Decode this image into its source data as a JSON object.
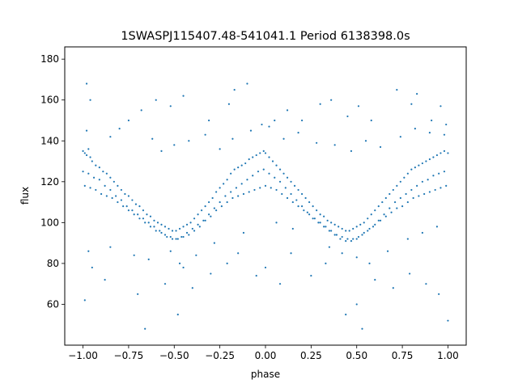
{
  "chart_data": {
    "type": "scatter",
    "title": "1SWASPJ115407.48-541041.1 Period 6138398.0s",
    "xlabel": "phase",
    "ylabel": "flux",
    "xlim": [
      -1.1,
      1.1
    ],
    "ylim": [
      40,
      186
    ],
    "xticks": [
      -1.0,
      -0.75,
      -0.5,
      -0.25,
      0.0,
      0.25,
      0.5,
      0.75,
      1.0
    ],
    "xtick_labels": [
      "−1.00",
      "−0.75",
      "−0.50",
      "−0.25",
      "0.00",
      "0.25",
      "0.50",
      "0.75",
      "1.00"
    ],
    "yticks": [
      60,
      80,
      100,
      120,
      140,
      160,
      180
    ],
    "ytick_labels": [
      "60",
      "80",
      "100",
      "120",
      "140",
      "160",
      "180"
    ],
    "grid": false,
    "point_color": "#1f77b4",
    "series": [
      {
        "x": [
          -1.0,
          -0.99,
          -0.98,
          -0.97,
          -0.96,
          -0.95,
          -0.93,
          -0.91,
          -0.89,
          -0.87,
          -0.85,
          -0.83,
          -0.81,
          -0.79,
          -0.77,
          -0.75,
          -0.73,
          -0.71,
          -0.69,
          -0.67,
          -0.65,
          -0.63,
          -0.61,
          -0.59,
          -0.57,
          -0.55,
          -0.53,
          -0.51,
          -0.49,
          -0.47,
          -0.45,
          -0.43,
          -0.41,
          -0.39,
          -0.37,
          -0.35,
          -0.33,
          -0.31,
          -0.29,
          -0.27,
          -0.25,
          -0.23,
          -0.21,
          -0.19,
          -0.17,
          -0.15,
          -0.13,
          -0.11,
          -0.09,
          -0.07,
          -0.05,
          -0.03,
          -0.01,
          0.0,
          0.02,
          0.04,
          0.06,
          0.08,
          0.1,
          0.12,
          0.14,
          0.16,
          0.18,
          0.2,
          0.22,
          0.24,
          0.26,
          0.28,
          0.3,
          0.32,
          0.34,
          0.36,
          0.38,
          0.4,
          0.42,
          0.44,
          0.46,
          0.48,
          0.5,
          0.52,
          0.54,
          0.56,
          0.58,
          0.6,
          0.62,
          0.64,
          0.66,
          0.68,
          0.7,
          0.72,
          0.74,
          0.76,
          0.78,
          0.8,
          0.82,
          0.84,
          0.86,
          0.88,
          0.9,
          0.92,
          0.94,
          0.96,
          0.98,
          1.0
        ],
        "y": [
          135,
          134,
          133,
          136,
          132,
          130,
          128,
          127,
          125,
          124,
          122,
          120,
          118,
          116,
          114,
          113,
          111,
          109,
          108,
          106,
          104,
          103,
          101,
          100,
          99,
          98,
          97,
          96,
          96,
          97,
          98,
          99,
          100,
          102,
          104,
          106,
          108,
          110,
          112,
          115,
          117,
          119,
          121,
          124,
          126,
          127,
          128,
          129,
          131,
          132,
          133,
          134,
          135,
          134,
          132,
          130,
          128,
          126,
          124,
          122,
          120,
          118,
          116,
          114,
          112,
          110,
          108,
          106,
          104,
          103,
          101,
          100,
          99,
          98,
          97,
          96,
          96,
          97,
          98,
          99,
          100,
          102,
          104,
          106,
          108,
          110,
          112,
          114,
          116,
          118,
          120,
          122,
          124,
          126,
          127,
          128,
          129,
          130,
          131,
          132,
          133,
          134,
          135,
          134
        ]
      },
      {
        "x": [
          -1.0,
          -0.97,
          -0.94,
          -0.91,
          -0.88,
          -0.85,
          -0.82,
          -0.79,
          -0.76,
          -0.73,
          -0.7,
          -0.67,
          -0.64,
          -0.61,
          -0.58,
          -0.55,
          -0.52,
          -0.49,
          -0.46,
          -0.43,
          -0.4,
          -0.37,
          -0.34,
          -0.31,
          -0.28,
          -0.25,
          -0.22,
          -0.19,
          -0.16,
          -0.13,
          -0.1,
          -0.07,
          -0.04,
          -0.01,
          0.02,
          0.05,
          0.08,
          0.11,
          0.14,
          0.17,
          0.2,
          0.23,
          0.26,
          0.29,
          0.32,
          0.35,
          0.38,
          0.41,
          0.44,
          0.47,
          0.5,
          0.53,
          0.56,
          0.59,
          0.62,
          0.65,
          0.68,
          0.71,
          0.74,
          0.77,
          0.8,
          0.83,
          0.86,
          0.89,
          0.92,
          0.95,
          0.98
        ],
        "y": [
          125,
          124,
          122,
          121,
          118,
          116,
          113,
          111,
          108,
          106,
          104,
          102,
          100,
          98,
          96,
          94,
          93,
          92,
          93,
          95,
          97,
          99,
          101,
          104,
          107,
          110,
          113,
          115,
          117,
          119,
          121,
          123,
          125,
          126,
          124,
          122,
          120,
          117,
          114,
          111,
          108,
          105,
          102,
          100,
          98,
          96,
          94,
          92,
          91,
          91,
          92,
          94,
          96,
          98,
          101,
          104,
          107,
          110,
          112,
          114,
          116,
          118,
          120,
          121,
          123,
          124,
          125
        ]
      },
      {
        "x": [
          -0.99,
          -0.96,
          -0.93,
          -0.9,
          -0.87,
          -0.84,
          -0.81,
          -0.78,
          -0.75,
          -0.72,
          -0.69,
          -0.66,
          -0.63,
          -0.6,
          -0.57,
          -0.54,
          -0.51,
          -0.48,
          -0.45,
          -0.42,
          -0.39,
          -0.36,
          -0.33,
          -0.3,
          -0.27,
          -0.24,
          -0.21,
          -0.18,
          -0.15,
          -0.12,
          -0.09,
          -0.06,
          -0.03,
          0.0,
          0.03,
          0.06,
          0.09,
          0.12,
          0.15,
          0.18,
          0.21,
          0.24,
          0.27,
          0.3,
          0.33,
          0.36,
          0.39,
          0.42,
          0.45,
          0.48,
          0.51,
          0.54,
          0.57,
          0.6,
          0.63,
          0.66,
          0.69,
          0.72,
          0.75,
          0.78,
          0.81,
          0.84,
          0.87,
          0.9,
          0.93,
          0.96,
          0.99
        ],
        "y": [
          118,
          117,
          116,
          114,
          113,
          112,
          110,
          108,
          106,
          104,
          102,
          100,
          98,
          96,
          95,
          93,
          92,
          92,
          93,
          94,
          96,
          98,
          101,
          103,
          106,
          108,
          110,
          112,
          113,
          114,
          115,
          116,
          117,
          118,
          117,
          116,
          114,
          112,
          110,
          108,
          106,
          104,
          102,
          100,
          98,
          96,
          94,
          93,
          92,
          92,
          93,
          95,
          97,
          99,
          101,
          103,
          105,
          107,
          108,
          110,
          112,
          113,
          114,
          115,
          116,
          117,
          118
        ]
      },
      {
        "x": [
          -0.98,
          -0.96,
          -0.75,
          -0.68,
          -0.6,
          -0.52,
          -0.45,
          -0.31,
          -0.2,
          -0.17,
          -0.1,
          -0.02,
          0.05,
          0.12,
          0.2,
          0.3,
          0.36,
          0.45,
          0.51,
          0.58,
          0.72,
          0.8,
          0.83,
          0.91,
          0.96,
          0.99
        ],
        "y": [
          168,
          160,
          150,
          155,
          160,
          157,
          162,
          150,
          158,
          165,
          168,
          148,
          150,
          155,
          150,
          158,
          160,
          152,
          157,
          150,
          165,
          158,
          163,
          150,
          157,
          148
        ]
      },
      {
        "x": [
          -0.99,
          -0.95,
          -0.88,
          -0.7,
          -0.66,
          -0.55,
          -0.48,
          -0.45,
          -0.4,
          -0.3,
          -0.21,
          -0.15,
          -0.05,
          0.0,
          0.08,
          0.14,
          0.25,
          0.33,
          0.44,
          0.5,
          0.53,
          0.6,
          0.7,
          0.79,
          0.88,
          0.95,
          1.0
        ],
        "y": [
          62,
          78,
          72,
          65,
          48,
          70,
          55,
          78,
          68,
          75,
          80,
          85,
          74,
          78,
          70,
          85,
          74,
          80,
          55,
          60,
          48,
          72,
          68,
          75,
          70,
          65,
          52
        ]
      },
      {
        "x": [
          -0.98,
          -0.85,
          -0.8,
          -0.62,
          -0.57,
          -0.5,
          -0.42,
          -0.33,
          -0.25,
          -0.18,
          -0.08,
          0.02,
          0.1,
          0.18,
          0.28,
          0.38,
          0.47,
          0.55,
          0.63,
          0.74,
          0.82,
          0.9,
          0.98
        ],
        "y": [
          145,
          142,
          146,
          141,
          135,
          138,
          140,
          143,
          136,
          141,
          145,
          147,
          141,
          144,
          139,
          138,
          135,
          140,
          137,
          142,
          146,
          144,
          143
        ]
      },
      {
        "x": [
          -0.97,
          -0.85,
          -0.72,
          -0.64,
          -0.52,
          -0.47,
          -0.38,
          -0.28,
          -0.12,
          0.06,
          0.15,
          0.35,
          0.42,
          0.5,
          0.57,
          0.67,
          0.78,
          0.86,
          0.94
        ],
        "y": [
          86,
          88,
          84,
          82,
          86,
          80,
          84,
          90,
          95,
          100,
          97,
          88,
          85,
          83,
          80,
          86,
          92,
          95,
          98
        ]
      }
    ]
  }
}
